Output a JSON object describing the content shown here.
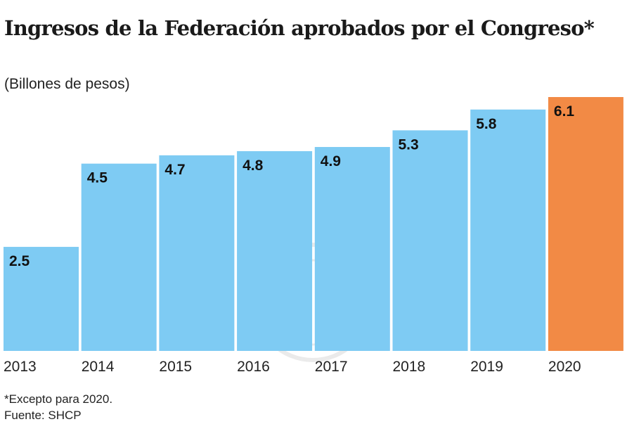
{
  "chart_data": {
    "type": "bar",
    "title": "Ingresos de la Federación aprobados por el Congreso*",
    "subtitle": "(Billones de pesos)",
    "categories": [
      "2013",
      "2014",
      "2015",
      "2016",
      "2017",
      "2018",
      "2019",
      "2020"
    ],
    "values": [
      2.5,
      4.5,
      4.7,
      4.8,
      4.9,
      5.3,
      5.8,
      6.1
    ],
    "data_labels": [
      "2.5",
      "4.5",
      "4.7",
      "4.8",
      "4.9",
      "5.3",
      "5.8",
      "6.1"
    ],
    "xlabel": "",
    "ylabel": "",
    "ylim": [
      0,
      6.1
    ],
    "grid": false,
    "colors": {
      "default": "#7ecbf3",
      "highlight": "#f28a45"
    },
    "highlight_category": "2020"
  },
  "notes": {
    "footnote": "*Excepto para 2020.",
    "source": "Fuente: SHCP"
  }
}
